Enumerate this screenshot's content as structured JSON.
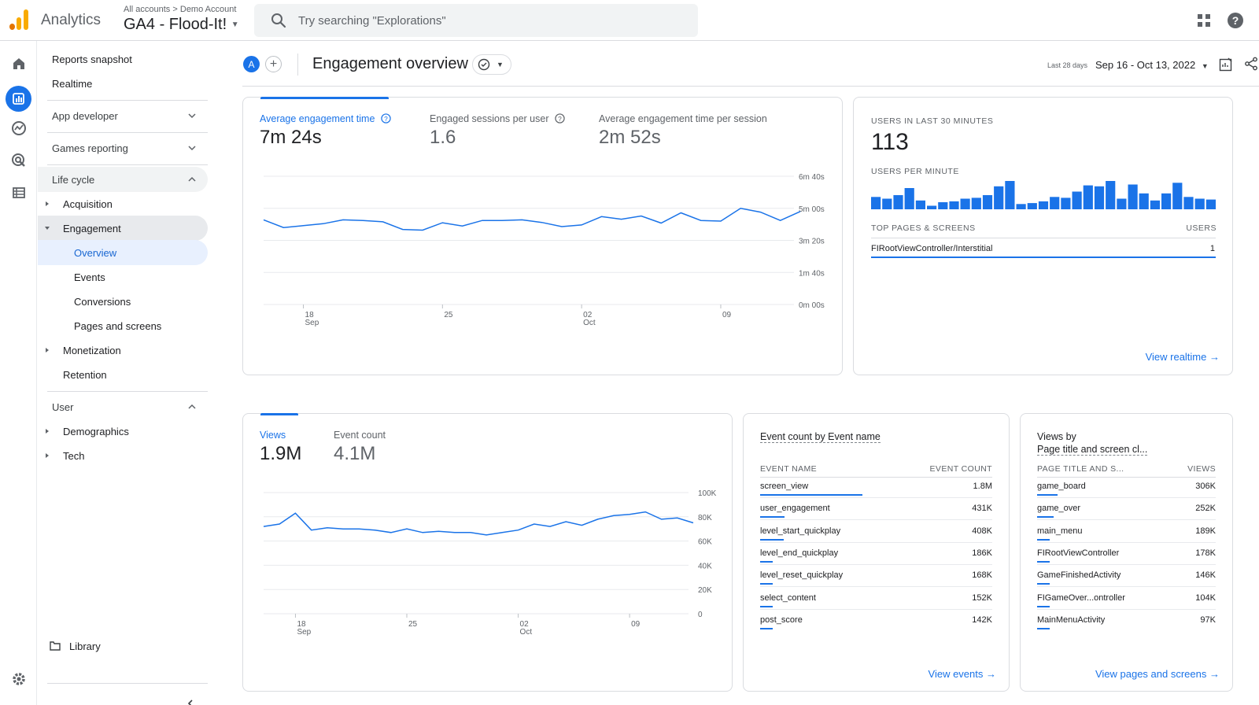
{
  "header": {
    "app_name": "Analytics",
    "breadcrumb_accounts": "All accounts",
    "breadcrumb_sep": ">",
    "breadcrumb_account": "Demo Account",
    "property": "GA4 - Flood-It!",
    "search_placeholder": "Try searching \"Explorations\""
  },
  "rail": {
    "icons": [
      "home-icon",
      "reports-icon",
      "explore-icon",
      "advertising-icon",
      "configure-icon",
      "settings-icon"
    ]
  },
  "nav": {
    "reports_snapshot": "Reports snapshot",
    "realtime": "Realtime",
    "app_developer": "App developer",
    "games_reporting": "Games reporting",
    "life_cycle": "Life cycle",
    "acquisition": "Acquisition",
    "engagement": "Engagement",
    "overview": "Overview",
    "events": "Events",
    "conversions": "Conversions",
    "pages_and_screens": "Pages and screens",
    "monetization": "Monetization",
    "retention": "Retention",
    "user": "User",
    "demographics": "Demographics",
    "tech": "Tech",
    "library": "Library"
  },
  "page": {
    "avatar_letter": "A",
    "add_comparison": "+",
    "title": "Engagement overview",
    "date_label": "Last 28 days",
    "date_range": "Sep 16 - Oct 13, 2022"
  },
  "engagement_card": {
    "metrics": [
      {
        "label": "Average engagement time",
        "value": "7m 24s"
      },
      {
        "label": "Engaged sessions per user",
        "value": "1.6"
      },
      {
        "label": "Average engagement time per session",
        "value": "2m 52s"
      }
    ]
  },
  "realtime_card": {
    "users_label": "USERS IN LAST 30 MINUTES",
    "users_value": "113",
    "per_minute_label": "USERS PER MINUTE",
    "per_minute": [
      14,
      12,
      16,
      24,
      10,
      4,
      8,
      9,
      12,
      13,
      16,
      26,
      32,
      6,
      7,
      9,
      14,
      13,
      20,
      27,
      26,
      32,
      12,
      28,
      18,
      10,
      18,
      30,
      14,
      12,
      11
    ],
    "table_header": "TOP PAGES & SCREENS",
    "table_header_users": "USERS",
    "row_name": "FIRootViewController/Interstitial",
    "row_value": "1",
    "link": "View realtime"
  },
  "views_card": {
    "metrics": [
      {
        "label": "Views",
        "value": "1.9M"
      },
      {
        "label": "Event count",
        "value": "4.1M"
      }
    ]
  },
  "events_card": {
    "title": "Event count by Event name",
    "col1": "EVENT NAME",
    "col2": "EVENT COUNT",
    "rows": [
      {
        "name": "screen_view",
        "value": "1.8M",
        "frac": 1.0
      },
      {
        "name": "user_engagement",
        "value": "431K",
        "frac": 0.24
      },
      {
        "name": "level_start_quickplay",
        "value": "408K",
        "frac": 0.23
      },
      {
        "name": "level_end_quickplay",
        "value": "186K",
        "frac": 0.1
      },
      {
        "name": "level_reset_quickplay",
        "value": "168K",
        "frac": 0.09
      },
      {
        "name": "select_content",
        "value": "152K",
        "frac": 0.085
      },
      {
        "name": "post_score",
        "value": "142K",
        "frac": 0.08
      }
    ],
    "link": "View events"
  },
  "pages_card": {
    "title_line1": "Views by",
    "title_line2": "Page title and screen cl...",
    "col1": "PAGE TITLE AND S...",
    "col2": "VIEWS",
    "rows": [
      {
        "name": "game_board",
        "value": "306K",
        "frac": 1.0
      },
      {
        "name": "game_over",
        "value": "252K",
        "frac": 0.82
      },
      {
        "name": "main_menu",
        "value": "189K",
        "frac": 0.62
      },
      {
        "name": "FIRootViewController",
        "value": "178K",
        "frac": 0.58
      },
      {
        "name": "GameFinishedActivity",
        "value": "146K",
        "frac": 0.48
      },
      {
        "name": "FIGameOver...ontroller",
        "value": "104K",
        "frac": 0.34
      },
      {
        "name": "MainMenuActivity",
        "value": "97K",
        "frac": 0.32
      }
    ],
    "link": "View pages and screens"
  },
  "colors": {
    "accent": "#1a73e8",
    "logo_orange": "#f9ab00",
    "logo_dark": "#e37400"
  },
  "chart_data": [
    {
      "type": "line",
      "x": [
        "Sep 16",
        "Sep 17",
        "Sep 18",
        "Sep 19",
        "Sep 20",
        "Sep 21",
        "Sep 22",
        "Sep 23",
        "Sep 24",
        "Sep 25",
        "Sep 26",
        "Sep 27",
        "Sep 28",
        "Sep 29",
        "Sep 30",
        "Oct 1",
        "Oct 2",
        "Oct 3",
        "Oct 4",
        "Oct 5",
        "Oct 6",
        "Oct 7",
        "Oct 8",
        "Oct 9",
        "Oct 10",
        "Oct 11",
        "Oct 12",
        "Oct 13"
      ],
      "series": [
        {
          "values": [
            264,
            240,
            246,
            252,
            264,
            262,
            258,
            234,
            232,
            255,
            245,
            262,
            262,
            264,
            256,
            243,
            248,
            274,
            266,
            276,
            254,
            286,
            262,
            260,
            300,
            288,
            262,
            290
          ]
        }
      ],
      "xticks": [
        {
          "at": "Sep 18",
          "label": "18",
          "sub": "Sep"
        },
        {
          "at": "Sep 25",
          "label": "25"
        },
        {
          "at": "Oct 2",
          "label": "02",
          "sub": "Oct"
        },
        {
          "at": "Oct 9",
          "label": "09"
        }
      ],
      "yticks": [
        {
          "v": 400,
          "label": "6m 40s"
        },
        {
          "v": 300,
          "label": "5m 00s"
        },
        {
          "v": 200,
          "label": "3m 20s"
        },
        {
          "v": 100,
          "label": "1m 40s"
        },
        {
          "v": 0,
          "label": "0m 00s"
        }
      ],
      "ylim": [
        0,
        400
      ],
      "grid": true
    },
    {
      "type": "line",
      "x": [
        "Sep 16",
        "Sep 17",
        "Sep 18",
        "Sep 19",
        "Sep 20",
        "Sep 21",
        "Sep 22",
        "Sep 23",
        "Sep 24",
        "Sep 25",
        "Sep 26",
        "Sep 27",
        "Sep 28",
        "Sep 29",
        "Sep 30",
        "Oct 1",
        "Oct 2",
        "Oct 3",
        "Oct 4",
        "Oct 5",
        "Oct 6",
        "Oct 7",
        "Oct 8",
        "Oct 9",
        "Oct 10",
        "Oct 11",
        "Oct 12",
        "Oct 13"
      ],
      "series": [
        {
          "values": [
            72000,
            74000,
            83000,
            69000,
            71000,
            70000,
            70000,
            69000,
            67000,
            70000,
            67000,
            68000,
            67000,
            67000,
            65000,
            67000,
            69000,
            74000,
            72000,
            76000,
            73000,
            78000,
            81000,
            82000,
            84000,
            78000,
            79000,
            75000
          ]
        }
      ],
      "xticks": [
        {
          "at": "Sep 18",
          "label": "18",
          "sub": "Sep"
        },
        {
          "at": "Sep 25",
          "label": "25"
        },
        {
          "at": "Oct 2",
          "label": "02",
          "sub": "Oct"
        },
        {
          "at": "Oct 9",
          "label": "09"
        }
      ],
      "yticks": [
        {
          "v": 100000,
          "label": "100K"
        },
        {
          "v": 80000,
          "label": "80K"
        },
        {
          "v": 60000,
          "label": "60K"
        },
        {
          "v": 40000,
          "label": "40K"
        },
        {
          "v": 20000,
          "label": "20K"
        },
        {
          "v": 0,
          "label": "0"
        }
      ],
      "ylim": [
        0,
        100000
      ],
      "grid": true
    }
  ]
}
